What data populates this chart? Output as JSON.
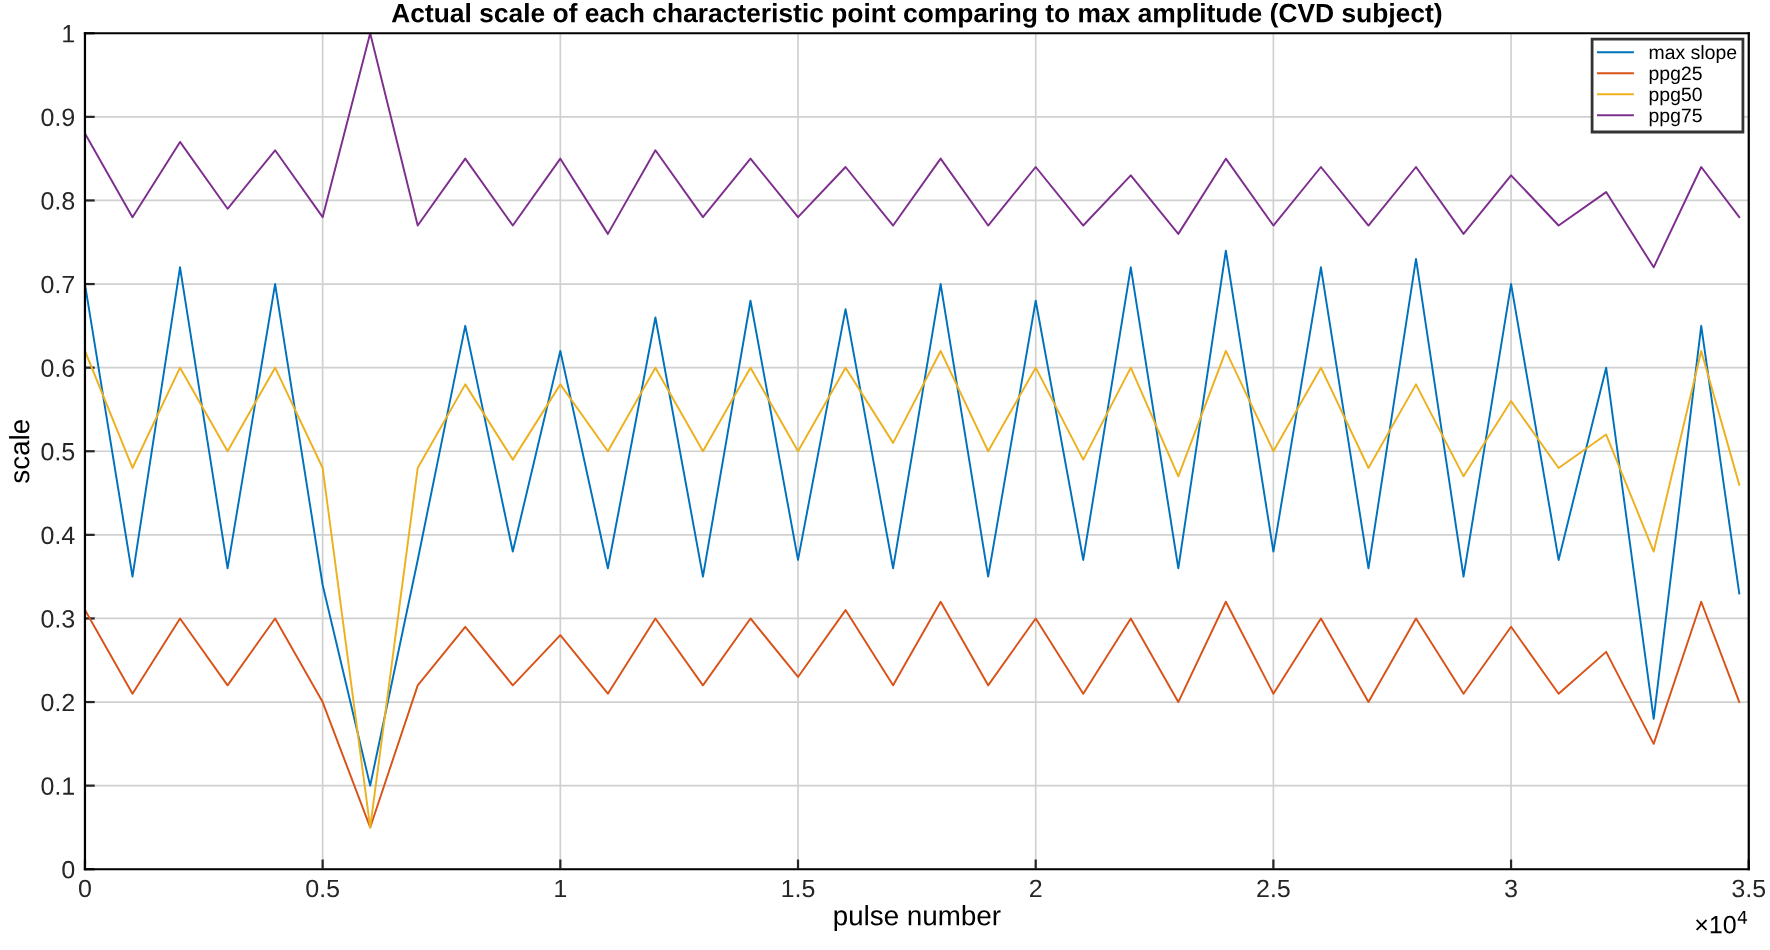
{
  "chart_data": {
    "type": "line",
    "title": "Actual scale of each characteristic point comparing to max amplitude (CVD subject)",
    "xlabel": "pulse number",
    "ylabel": "scale",
    "x": [
      0,
      0.1,
      0.2,
      0.3,
      0.4,
      0.5,
      0.6,
      0.7,
      0.8,
      0.9,
      1.0,
      1.1,
      1.2,
      1.3,
      1.4,
      1.5,
      1.6,
      1.7,
      1.8,
      1.9,
      2.0,
      2.1,
      2.2,
      2.3,
      2.4,
      2.5,
      2.6,
      2.7,
      2.8,
      2.9,
      3.0,
      3.1,
      3.2,
      3.3,
      3.4,
      3.48
    ],
    "series": [
      {
        "name": "max slope",
        "color": "#0072bd",
        "values": [
          0.7,
          0.35,
          0.72,
          0.36,
          0.7,
          0.34,
          0.1,
          0.37,
          0.65,
          0.38,
          0.62,
          0.36,
          0.66,
          0.35,
          0.68,
          0.37,
          0.67,
          0.36,
          0.7,
          0.35,
          0.68,
          0.37,
          0.72,
          0.36,
          0.74,
          0.38,
          0.72,
          0.36,
          0.73,
          0.35,
          0.7,
          0.37,
          0.6,
          0.18,
          0.65,
          0.33
        ]
      },
      {
        "name": "ppg25",
        "color": "#d95319",
        "values": [
          0.31,
          0.21,
          0.3,
          0.22,
          0.3,
          0.2,
          0.05,
          0.22,
          0.29,
          0.22,
          0.28,
          0.21,
          0.3,
          0.22,
          0.3,
          0.23,
          0.31,
          0.22,
          0.32,
          0.22,
          0.3,
          0.21,
          0.3,
          0.2,
          0.32,
          0.21,
          0.3,
          0.2,
          0.3,
          0.21,
          0.29,
          0.21,
          0.26,
          0.15,
          0.32,
          0.2
        ]
      },
      {
        "name": "ppg50",
        "color": "#edb120",
        "values": [
          0.62,
          0.48,
          0.6,
          0.5,
          0.6,
          0.48,
          0.05,
          0.48,
          0.58,
          0.49,
          0.58,
          0.5,
          0.6,
          0.5,
          0.6,
          0.5,
          0.6,
          0.51,
          0.62,
          0.5,
          0.6,
          0.49,
          0.6,
          0.47,
          0.62,
          0.5,
          0.6,
          0.48,
          0.58,
          0.47,
          0.56,
          0.48,
          0.52,
          0.38,
          0.62,
          0.46
        ]
      },
      {
        "name": "ppg75",
        "color": "#7e2f8e",
        "values": [
          0.88,
          0.78,
          0.87,
          0.79,
          0.86,
          0.78,
          1.0,
          0.77,
          0.85,
          0.77,
          0.85,
          0.76,
          0.86,
          0.78,
          0.85,
          0.78,
          0.84,
          0.77,
          0.85,
          0.77,
          0.84,
          0.77,
          0.83,
          0.76,
          0.85,
          0.77,
          0.84,
          0.77,
          0.84,
          0.76,
          0.83,
          0.77,
          0.81,
          0.72,
          0.84,
          0.78
        ]
      }
    ],
    "xlim": [
      0,
      3.5
    ],
    "xticks": [
      0,
      0.5,
      1,
      1.5,
      2,
      2.5,
      3,
      3.5
    ],
    "ylim": [
      0,
      1
    ],
    "yticks": [
      0,
      0.1,
      0.2,
      0.3,
      0.4,
      0.5,
      0.6,
      0.7,
      0.8,
      0.9,
      1
    ],
    "annotations": [
      "×10$^{4}$"
    ],
    "grid": true,
    "legend": "top right",
    "line_style": "solid",
    "marker": "none"
  }
}
